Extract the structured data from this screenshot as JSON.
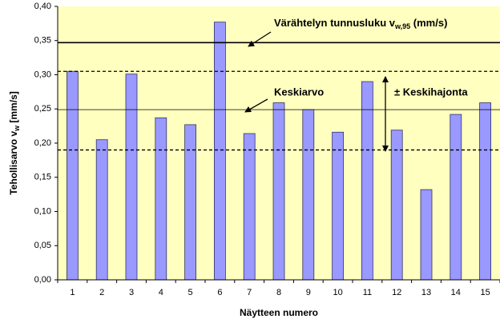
{
  "chart_data": {
    "type": "bar",
    "x_label": "Näytteen numero",
    "y_label": {
      "text": "Tehollisarvo v",
      "sub": "w",
      "after": " [mm/s]"
    },
    "categories": [
      "1",
      "2",
      "3",
      "4",
      "5",
      "6",
      "7",
      "8",
      "9",
      "10",
      "11",
      "12",
      "13",
      "14",
      "15"
    ],
    "values": [
      0.305,
      0.205,
      0.301,
      0.237,
      0.227,
      0.377,
      0.214,
      0.259,
      0.249,
      0.216,
      0.29,
      0.219,
      0.132,
      0.242,
      0.259
    ],
    "color": "#9999ff",
    "ylim": [
      0,
      0.4
    ],
    "yticks": [
      {
        "value": 0,
        "label": "0,00"
      },
      {
        "value": 0.05,
        "label": "0,05"
      },
      {
        "value": 0.1,
        "label": "0,10"
      },
      {
        "value": 0.15,
        "label": "0,15"
      },
      {
        "value": 0.2,
        "label": "0,20"
      },
      {
        "value": 0.25,
        "label": "0,25"
      },
      {
        "value": 0.3,
        "label": "0,30"
      },
      {
        "value": 0.35,
        "label": "0,35"
      },
      {
        "value": 0.4,
        "label": "0,40"
      }
    ],
    "reference_lines": [
      {
        "value": 0.347,
        "style": "solid"
      },
      {
        "value": 0.305,
        "style": "dashed"
      },
      {
        "value": 0.249,
        "style": "thin"
      },
      {
        "value": 0.19,
        "style": "dashed"
      }
    ],
    "annotations": [
      {
        "text": "Värähtelyn tunnusluku v",
        "sub": "w,95",
        "after": "  (mm/s)"
      },
      {
        "text": "Keskiarvo"
      },
      {
        "text": "± Keskihajonta"
      }
    ]
  }
}
